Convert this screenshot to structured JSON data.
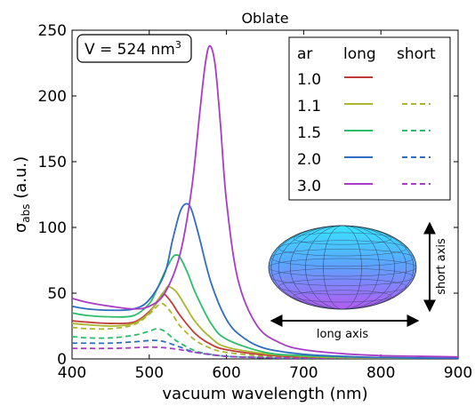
{
  "chart_data": {
    "type": "line",
    "title": "Oblate",
    "xlabel": "vacuum wavelength (nm)",
    "ylabel": {
      "main": "σ",
      "sub": "abs",
      "rest": " (a.u.)"
    },
    "xlim": [
      400,
      900
    ],
    "ylim": [
      0,
      250
    ],
    "xticks": [
      "400",
      "500",
      "600",
      "700",
      "800",
      "900"
    ],
    "yticks": [
      "0",
      "50",
      "100",
      "150",
      "200",
      "250"
    ],
    "volume_label": {
      "prefix": "V = 524 nm",
      "sup": "3"
    },
    "legend": {
      "placement": "top-right",
      "headers": [
        "ar",
        "long",
        "short"
      ],
      "entries": [
        {
          "ar": "1.0",
          "color": "#c03a3a",
          "short": false
        },
        {
          "ar": "1.1",
          "color": "#a9b62e",
          "short": true
        },
        {
          "ar": "1.5",
          "color": "#2dbd6a",
          "short": true
        },
        {
          "ar": "2.0",
          "color": "#2f6dc2",
          "short": true
        },
        {
          "ar": "3.0",
          "color": "#a83cc4",
          "short": true
        }
      ]
    },
    "inset": {
      "long_axis_label": "long axis",
      "short_axis_label": "short axis"
    },
    "series": [
      {
        "ar": "1.0",
        "polarization": "long",
        "color": "#c03a3a",
        "dashed": false,
        "x": [
          400,
          420,
          450,
          480,
          500,
          510,
          515,
          520,
          530,
          540,
          560,
          580,
          600,
          650,
          700,
          750,
          800,
          900
        ],
        "y": [
          29,
          28,
          27,
          28,
          36,
          43,
          47,
          49,
          42,
          33,
          19,
          11,
          7,
          3,
          1.5,
          1,
          0.6,
          0.3
        ]
      },
      {
        "ar": "1.1",
        "polarization": "long",
        "color": "#a9b62e",
        "dashed": false,
        "x": [
          400,
          420,
          450,
          480,
          500,
          510,
          520,
          525,
          535,
          545,
          560,
          580,
          600,
          650,
          700,
          750,
          800,
          900
        ],
        "y": [
          27,
          26,
          25,
          27,
          35,
          44,
          52,
          55,
          51,
          42,
          28,
          16,
          9,
          4,
          2,
          1,
          0.7,
          0.3
        ]
      },
      {
        "ar": "1.1",
        "polarization": "short",
        "color": "#a9b62e",
        "dashed": true,
        "x": [
          400,
          420,
          450,
          480,
          500,
          510,
          515,
          520,
          530,
          540,
          560,
          580,
          600,
          650,
          700,
          800,
          900
        ],
        "y": [
          24,
          23,
          23,
          26,
          34,
          40,
          42,
          41,
          34,
          25,
          14,
          8,
          5,
          2,
          1,
          0.5,
          0.2
        ]
      },
      {
        "ar": "1.5",
        "polarization": "long",
        "color": "#2dbd6a",
        "dashed": false,
        "x": [
          400,
          420,
          450,
          480,
          500,
          510,
          520,
          530,
          535,
          540,
          550,
          560,
          580,
          600,
          650,
          700,
          800,
          900
        ],
        "y": [
          35,
          33,
          32,
          33,
          42,
          53,
          66,
          77,
          79,
          77,
          65,
          50,
          27,
          15,
          5,
          2.5,
          1,
          0.4
        ]
      },
      {
        "ar": "1.5",
        "polarization": "short",
        "color": "#2dbd6a",
        "dashed": true,
        "x": [
          400,
          420,
          450,
          480,
          500,
          510,
          520,
          530,
          540,
          560,
          580,
          600,
          650,
          700,
          900
        ],
        "y": [
          17,
          16,
          16,
          18,
          21,
          23,
          21,
          16,
          12,
          6,
          3.5,
          2,
          1,
          0.5,
          0.2
        ]
      },
      {
        "ar": "2.0",
        "polarization": "long",
        "color": "#2f6dc2",
        "dashed": false,
        "x": [
          400,
          420,
          450,
          480,
          500,
          520,
          530,
          540,
          548,
          555,
          565,
          580,
          600,
          620,
          650,
          700,
          750,
          800,
          900
        ],
        "y": [
          40,
          38,
          37,
          38,
          45,
          65,
          90,
          112,
          118,
          113,
          92,
          58,
          30,
          17,
          8,
          3.5,
          2,
          1,
          0.5
        ]
      },
      {
        "ar": "2.0",
        "polarization": "short",
        "color": "#2f6dc2",
        "dashed": true,
        "x": [
          400,
          420,
          450,
          480,
          500,
          510,
          520,
          540,
          560,
          600,
          650,
          700,
          900
        ],
        "y": [
          12,
          12,
          12,
          13,
          14,
          14,
          13,
          9,
          5,
          2,
          1,
          0.5,
          0.2
        ]
      },
      {
        "ar": "3.0",
        "polarization": "long",
        "color": "#a83cc4",
        "dashed": false,
        "x": [
          400,
          420,
          450,
          480,
          500,
          520,
          540,
          555,
          565,
          572,
          578,
          585,
          592,
          600,
          615,
          640,
          670,
          700,
          750,
          800,
          850,
          900
        ],
        "y": [
          46,
          43,
          40,
          38,
          40,
          50,
          80,
          130,
          185,
          222,
          238,
          225,
          180,
          120,
          60,
          25,
          12,
          7,
          4,
          2.5,
          2,
          1.5
        ]
      },
      {
        "ar": "3.0",
        "polarization": "short",
        "color": "#a83cc4",
        "dashed": true,
        "x": [
          400,
          450,
          480,
          500,
          520,
          540,
          560,
          600,
          650,
          700,
          900
        ],
        "y": [
          8,
          8,
          8.5,
          9,
          8.5,
          7,
          5,
          2,
          1,
          0.5,
          0.2
        ]
      }
    ]
  }
}
